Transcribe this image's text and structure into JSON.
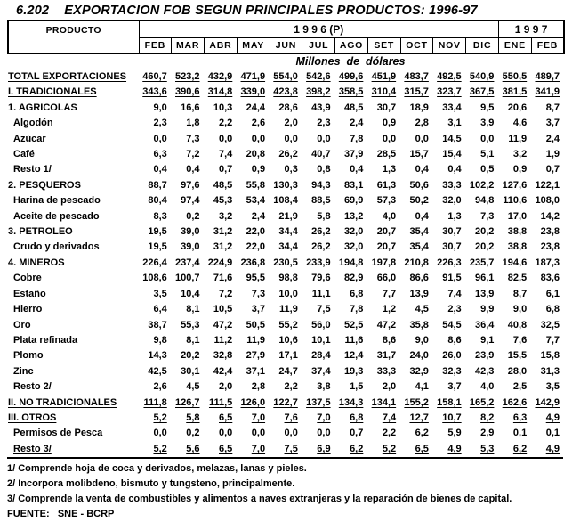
{
  "colors": {
    "background": "#ffffff",
    "text": "#000000",
    "border": "#000000"
  },
  "title": "6.202    EXPORTACION FOB SEGUN PRINCIPALES PRODUCTOS: 1996-97",
  "header": {
    "product_label": "PRODUCTO",
    "year_1996_label": "1 9 9 6 (P)",
    "year_1997_label": "1 9 9 7",
    "months_1996": [
      "FEB",
      "MAR",
      "ABR",
      "MAY",
      "JUN",
      "JUL",
      "AGO",
      "SET",
      "OCT",
      "NOV",
      "DIC"
    ],
    "months_1997": [
      "ENE",
      "FEB"
    ]
  },
  "units_label": "Millones  de  dólares",
  "chart_data": {
    "type": "table",
    "title": "6.202 EXPORTACION FOB SEGUN PRINCIPALES PRODUCTOS: 1996-97",
    "units": "Millones de dólares",
    "columns": [
      "FEB 1996",
      "MAR 1996",
      "ABR 1996",
      "MAY 1996",
      "JUN 1996",
      "JUL 1996",
      "AGO 1996",
      "SET 1996",
      "OCT 1996",
      "NOV 1996",
      "DIC 1996",
      "ENE 1997",
      "FEB 1997"
    ],
    "rows": [
      {
        "label": "TOTAL EXPORTACIONES",
        "indent": false,
        "underline": true,
        "values": [
          "460,7",
          "523,2",
          "432,9",
          "471,9",
          "554,0",
          "542,6",
          "499,6",
          "451,9",
          "483,7",
          "492,5",
          "540,9",
          "550,5",
          "489,7"
        ]
      },
      {
        "label": "I. TRADICIONALES",
        "indent": false,
        "underline": true,
        "values": [
          "343,6",
          "390,6",
          "314,8",
          "339,0",
          "423,8",
          "398,2",
          "358,5",
          "310,4",
          "315,7",
          "323,7",
          "367,5",
          "381,5",
          "341,9"
        ]
      },
      {
        "label": "1. AGRICOLAS",
        "indent": false,
        "underline": false,
        "values": [
          "9,0",
          "16,6",
          "10,3",
          "24,4",
          "28,6",
          "43,9",
          "48,5",
          "30,7",
          "18,9",
          "33,4",
          "9,5",
          "20,6",
          "8,7"
        ]
      },
      {
        "label": "Algodón",
        "indent": true,
        "underline": false,
        "values": [
          "2,3",
          "1,8",
          "2,2",
          "2,6",
          "2,0",
          "2,3",
          "2,4",
          "0,9",
          "2,8",
          "3,1",
          "3,9",
          "4,6",
          "3,7"
        ]
      },
      {
        "label": "Azúcar",
        "indent": true,
        "underline": false,
        "values": [
          "0,0",
          "7,3",
          "0,0",
          "0,0",
          "0,0",
          "0,0",
          "7,8",
          "0,0",
          "0,0",
          "14,5",
          "0,0",
          "11,9",
          "2,4"
        ]
      },
      {
        "label": "Café",
        "indent": true,
        "underline": false,
        "values": [
          "6,3",
          "7,2",
          "7,4",
          "20,8",
          "26,2",
          "40,7",
          "37,9",
          "28,5",
          "15,7",
          "15,4",
          "5,1",
          "3,2",
          "1,9"
        ]
      },
      {
        "label": "Resto 1/",
        "indent": true,
        "underline": false,
        "values": [
          "0,4",
          "0,4",
          "0,7",
          "0,9",
          "0,3",
          "0,8",
          "0,4",
          "1,3",
          "0,4",
          "0,4",
          "0,5",
          "0,9",
          "0,7"
        ]
      },
      {
        "label": "2. PESQUEROS",
        "indent": false,
        "underline": false,
        "values": [
          "88,7",
          "97,6",
          "48,5",
          "55,8",
          "130,3",
          "94,3",
          "83,1",
          "61,3",
          "50,6",
          "33,3",
          "102,2",
          "127,6",
          "122,1"
        ]
      },
      {
        "label": "Harina de pescado",
        "indent": true,
        "underline": false,
        "values": [
          "80,4",
          "97,4",
          "45,3",
          "53,4",
          "108,4",
          "88,5",
          "69,9",
          "57,3",
          "50,2",
          "32,0",
          "94,8",
          "110,6",
          "108,0"
        ]
      },
      {
        "label": "Aceite de pescado",
        "indent": true,
        "underline": false,
        "values": [
          "8,3",
          "0,2",
          "3,2",
          "2,4",
          "21,9",
          "5,8",
          "13,2",
          "4,0",
          "0,4",
          "1,3",
          "7,3",
          "17,0",
          "14,2"
        ]
      },
      {
        "label": "3. PETROLEO",
        "indent": false,
        "underline": false,
        "values": [
          "19,5",
          "39,0",
          "31,2",
          "22,0",
          "34,4",
          "26,2",
          "32,0",
          "20,7",
          "35,4",
          "30,7",
          "20,2",
          "38,8",
          "23,8"
        ]
      },
      {
        "label": "Crudo y derivados",
        "indent": true,
        "underline": false,
        "values": [
          "19,5",
          "39,0",
          "31,2",
          "22,0",
          "34,4",
          "26,2",
          "32,0",
          "20,7",
          "35,4",
          "30,7",
          "20,2",
          "38,8",
          "23,8"
        ]
      },
      {
        "label": "4. MINEROS",
        "indent": false,
        "underline": false,
        "values": [
          "226,4",
          "237,4",
          "224,9",
          "236,8",
          "230,5",
          "233,9",
          "194,8",
          "197,8",
          "210,8",
          "226,3",
          "235,7",
          "194,6",
          "187,3"
        ]
      },
      {
        "label": "Cobre",
        "indent": true,
        "underline": false,
        "values": [
          "108,6",
          "100,7",
          "71,6",
          "95,5",
          "98,8",
          "79,6",
          "82,9",
          "66,0",
          "86,6",
          "91,5",
          "96,1",
          "82,5",
          "83,6"
        ]
      },
      {
        "label": "Estaño",
        "indent": true,
        "underline": false,
        "values": [
          "3,5",
          "10,4",
          "7,2",
          "7,3",
          "10,0",
          "11,1",
          "6,8",
          "7,7",
          "13,9",
          "7,4",
          "13,9",
          "8,7",
          "6,1"
        ]
      },
      {
        "label": "Hierro",
        "indent": true,
        "underline": false,
        "values": [
          "6,4",
          "8,1",
          "10,5",
          "3,7",
          "11,9",
          "7,5",
          "7,8",
          "1,2",
          "4,5",
          "2,3",
          "9,9",
          "9,0",
          "6,8"
        ]
      },
      {
        "label": "Oro",
        "indent": true,
        "underline": false,
        "values": [
          "38,7",
          "55,3",
          "47,2",
          "50,5",
          "55,2",
          "56,0",
          "52,5",
          "47,2",
          "35,8",
          "54,5",
          "36,4",
          "40,8",
          "32,5"
        ]
      },
      {
        "label": "Plata refinada",
        "indent": true,
        "underline": false,
        "values": [
          "9,8",
          "8,1",
          "11,2",
          "11,9",
          "10,6",
          "10,1",
          "11,6",
          "8,6",
          "9,0",
          "8,6",
          "9,1",
          "7,6",
          "7,7"
        ]
      },
      {
        "label": "Plomo",
        "indent": true,
        "underline": false,
        "values": [
          "14,3",
          "20,2",
          "32,8",
          "27,9",
          "17,1",
          "28,4",
          "12,4",
          "31,7",
          "24,0",
          "26,0",
          "23,9",
          "15,5",
          "15,8"
        ]
      },
      {
        "label": "Zinc",
        "indent": true,
        "underline": false,
        "values": [
          "42,5",
          "30,1",
          "42,4",
          "37,1",
          "24,7",
          "37,4",
          "19,3",
          "33,3",
          "32,9",
          "32,3",
          "42,3",
          "28,0",
          "31,3"
        ]
      },
      {
        "label": "Resto 2/",
        "indent": true,
        "underline": false,
        "values": [
          "2,6",
          "4,5",
          "2,0",
          "2,8",
          "2,2",
          "3,8",
          "1,5",
          "2,0",
          "4,1",
          "3,7",
          "4,0",
          "2,5",
          "3,5"
        ]
      },
      {
        "label": "II. NO TRADICIONALES",
        "indent": false,
        "underline": true,
        "values": [
          "111,8",
          "126,7",
          "111,5",
          "126,0",
          "122,7",
          "137,5",
          "134,3",
          "134,1",
          "155,2",
          "158,1",
          "165,2",
          "162,6",
          "142,9"
        ]
      },
      {
        "label": "III. OTROS",
        "indent": false,
        "underline": true,
        "values": [
          "5,2",
          "5,8",
          "6,5",
          "7,0",
          "7,6",
          "7,0",
          "6,8",
          "7,4",
          "12,7",
          "10,7",
          "8,2",
          "6,3",
          "4,9"
        ]
      },
      {
        "label": "Permisos de Pesca",
        "indent": true,
        "underline": false,
        "values": [
          "0,0",
          "0,2",
          "0,0",
          "0,0",
          "0,0",
          "0,0",
          "0,7",
          "2,2",
          "6,2",
          "5,9",
          "2,9",
          "0,1",
          "0,1"
        ]
      },
      {
        "label": "Resto 3/",
        "indent": true,
        "underline": true,
        "values": [
          "5,2",
          "5,6",
          "6,5",
          "7,0",
          "7,5",
          "6,9",
          "6,2",
          "5,2",
          "6,5",
          "4,9",
          "5,3",
          "6,2",
          "4,9"
        ]
      }
    ]
  },
  "footnotes": [
    "1/ Comprende hoja de coca y derivados, melazas, lanas y pieles.",
    "2/ Incorpora molibdeno, bismuto y tungsteno, principalmente.",
    "3/ Comprende la venta de combustibles y alimentos a naves extranjeras y la reparación de bienes de capital."
  ],
  "source": "FUENTE:   SNE - BCRP"
}
